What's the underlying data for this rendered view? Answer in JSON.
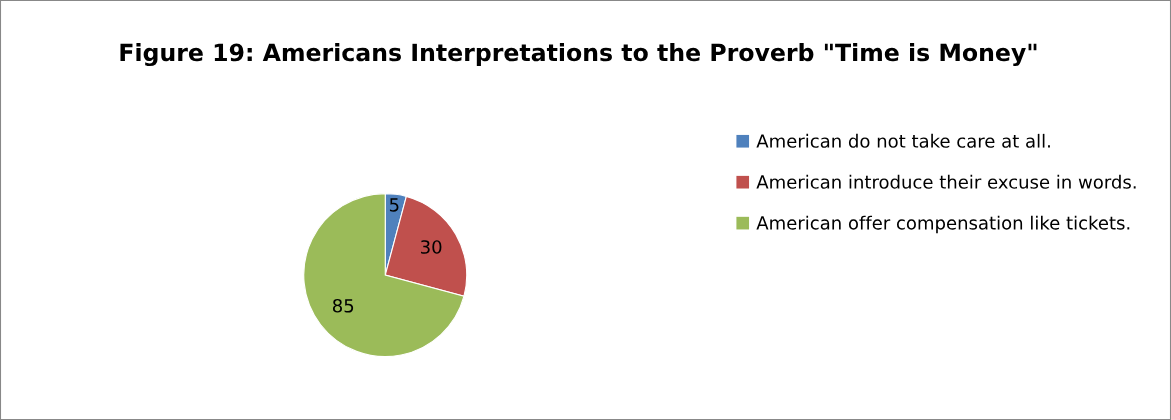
{
  "chart_data": {
    "type": "pie",
    "title": "Figure 19: Americans Interpretations to the Proverb \"Time is Money\"",
    "categories": [
      "American do not take care at all.",
      "American introduce their excuse in words.",
      "American offer compensation like tickets."
    ],
    "values": [
      5,
      30,
      85
    ],
    "colors": [
      "#4f81bd",
      "#c0504d",
      "#9bbb59"
    ],
    "data_labels": true,
    "legend": "right"
  }
}
